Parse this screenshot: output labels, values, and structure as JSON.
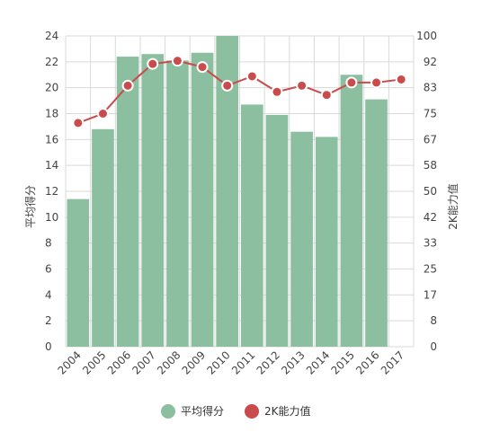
{
  "chart_data": {
    "type": "bar",
    "categories": [
      "2004",
      "2005",
      "2006",
      "2007",
      "2008",
      "2009",
      "2010",
      "2011",
      "2012",
      "2013",
      "2014",
      "2015",
      "2016",
      "2017"
    ],
    "series": [
      {
        "name": "平均得分",
        "type": "bar",
        "axis": "left",
        "color": "#8bbfa0",
        "values": [
          11.4,
          16.8,
          22.4,
          22.6,
          22.1,
          22.7,
          24.0,
          18.7,
          17.9,
          16.6,
          16.2,
          21.0,
          19.1,
          null
        ]
      },
      {
        "name": "2K能力值",
        "type": "line",
        "axis": "right",
        "color": "#c94b4b",
        "values": [
          72,
          75,
          84,
          91,
          92,
          90,
          84,
          87,
          82,
          84,
          81,
          85,
          85,
          86
        ]
      }
    ],
    "y_left": {
      "label": "平均得分",
      "ylim": [
        0,
        24
      ],
      "ticks": [
        "0",
        "2",
        "4",
        "6",
        "8",
        "10",
        "12",
        "14",
        "16",
        "18",
        "20",
        "22",
        "24"
      ]
    },
    "y_right": {
      "label": "2K能力值",
      "ylim": [
        0,
        100
      ],
      "ticks": [
        "0",
        "8",
        "17",
        "25",
        "33",
        "42",
        "50",
        "58",
        "67",
        "75",
        "83",
        "92",
        "100"
      ]
    },
    "grid": true,
    "legend_position": "bottom"
  }
}
